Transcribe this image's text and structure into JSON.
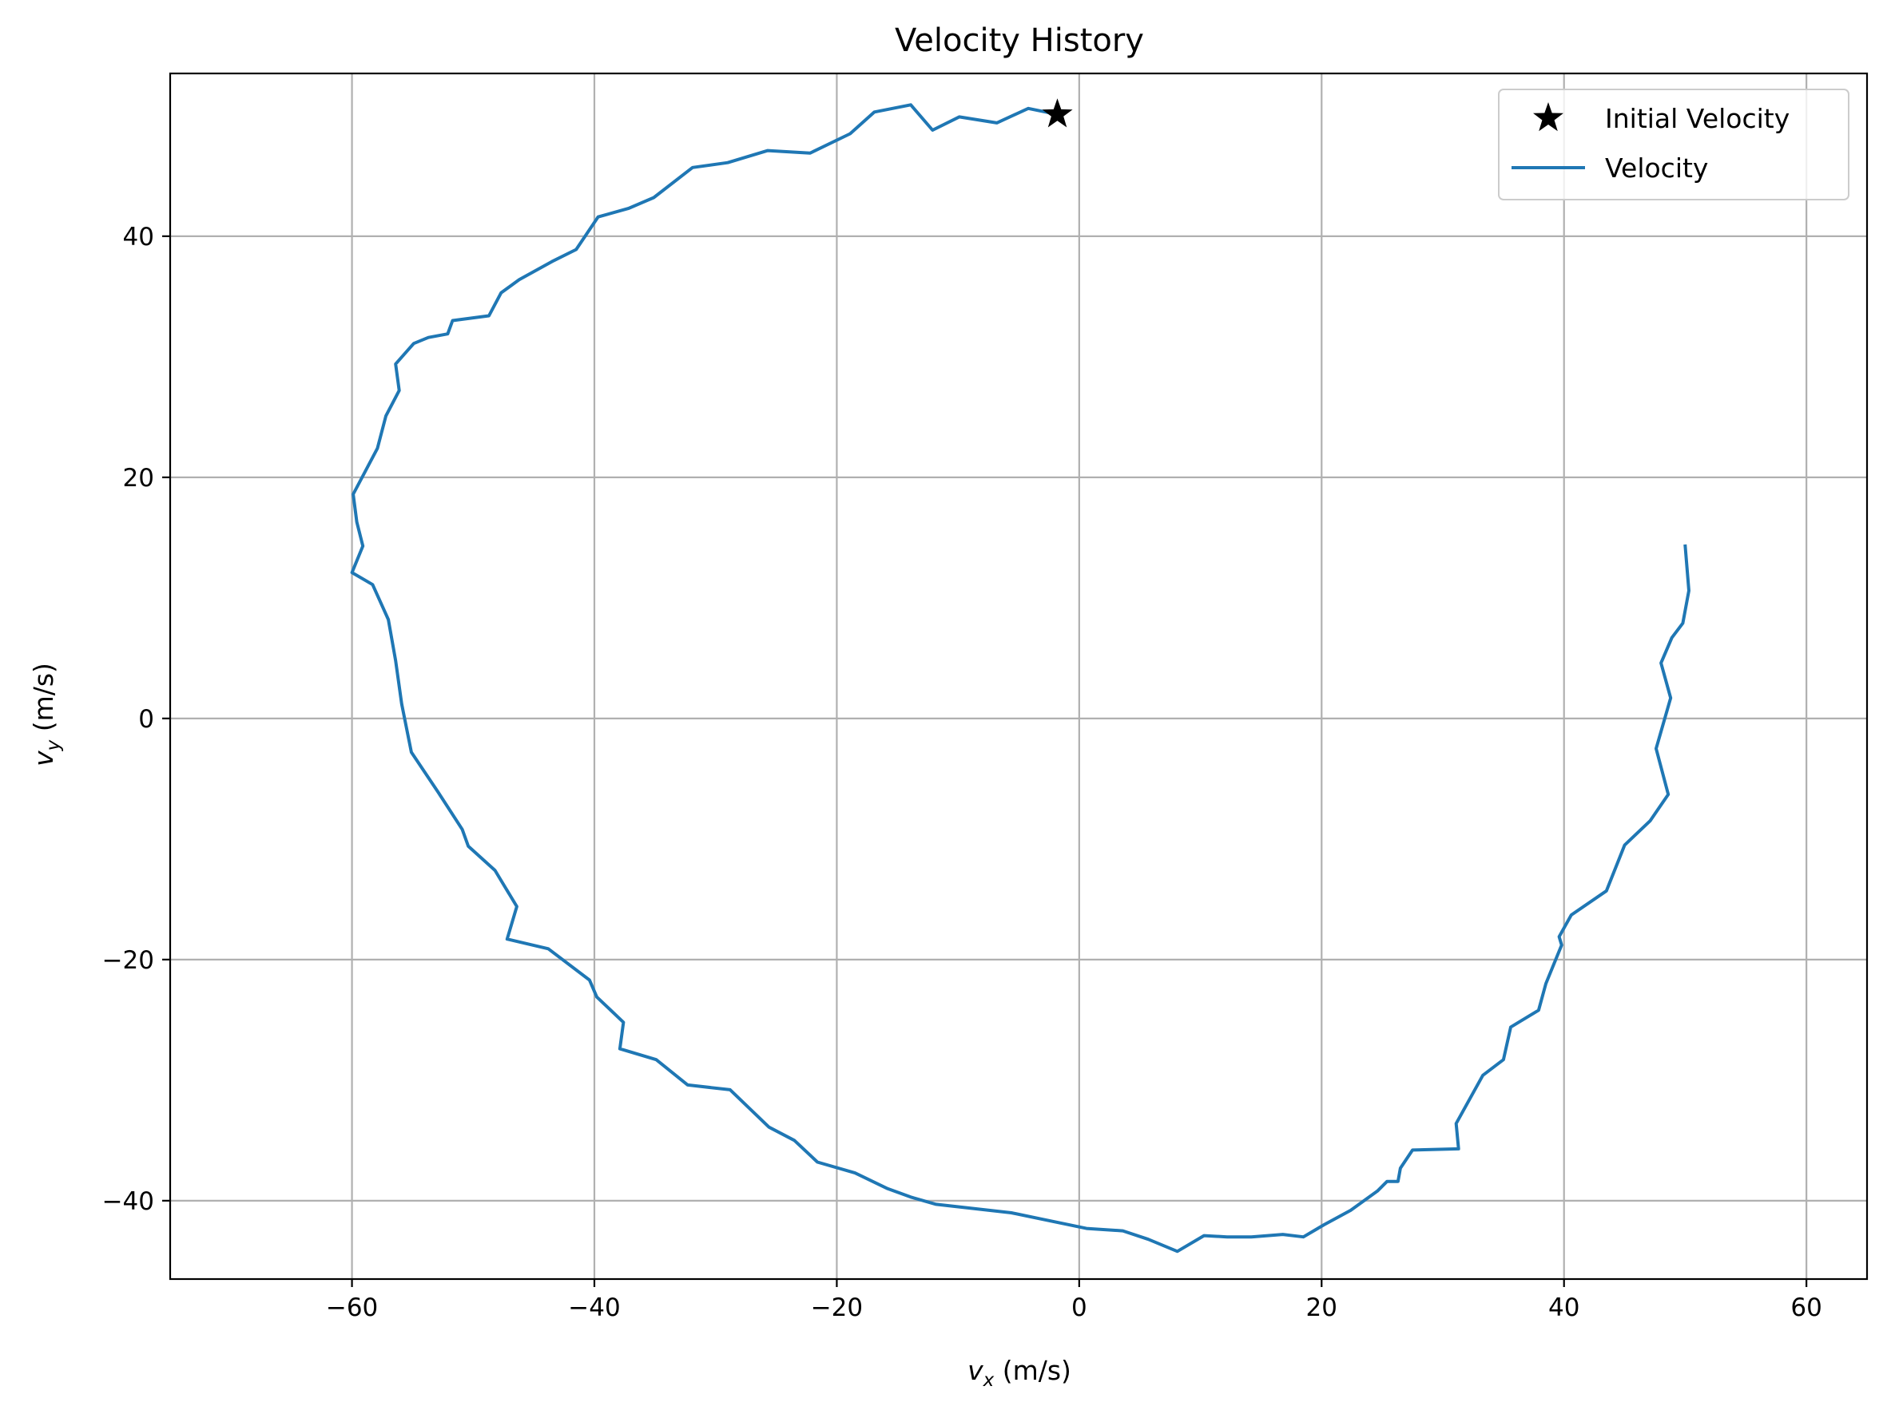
{
  "chart_data": {
    "type": "line",
    "title": "Velocity History",
    "xlabel_var": "v",
    "xlabel_sub": "x",
    "xlabel_unit": " (m/s)",
    "ylabel_var": "v",
    "ylabel_sub": "y",
    "ylabel_unit": " (m/s)",
    "xlim": [
      -75,
      65
    ],
    "ylim": [
      -46.5,
      53.5
    ],
    "xticks": [
      -60,
      -40,
      -20,
      0,
      20,
      40,
      60
    ],
    "yticks": [
      -40,
      -20,
      0,
      20,
      40
    ],
    "xtick_labels": [
      "−60",
      "−40",
      "−20",
      "0",
      "20",
      "40",
      "60"
    ],
    "ytick_labels": [
      "−40",
      "−20",
      "0",
      "20",
      "40"
    ],
    "grid": true,
    "legend_position": "top-right",
    "legend": [
      {
        "label": "Initial Velocity",
        "marker": "star",
        "color": "#000000"
      },
      {
        "label": "Velocity",
        "marker": "line",
        "color": "#1f77b4"
      }
    ],
    "initial_point": {
      "x": -1.8,
      "y": 50.1
    },
    "series": [
      {
        "name": "Velocity",
        "color": "#1f77b4",
        "points": [
          [
            -1.8,
            50.1
          ],
          [
            -4.2,
            50.6
          ],
          [
            -6.8,
            49.4
          ],
          [
            -9.9,
            49.9
          ],
          [
            -12.1,
            48.8
          ],
          [
            -13.9,
            50.9
          ],
          [
            -16.9,
            50.3
          ],
          [
            -18.9,
            48.5
          ],
          [
            -22.2,
            46.9
          ],
          [
            -25.7,
            47.1
          ],
          [
            -29.0,
            46.1
          ],
          [
            -31.9,
            45.7
          ],
          [
            -35.1,
            43.2
          ],
          [
            -37.2,
            42.3
          ],
          [
            -39.7,
            41.6
          ],
          [
            -41.5,
            38.9
          ],
          [
            -43.5,
            37.9
          ],
          [
            -46.2,
            36.4
          ],
          [
            -47.7,
            35.3
          ],
          [
            -48.7,
            33.4
          ],
          [
            -51.7,
            33.0
          ],
          [
            -52.1,
            31.9
          ],
          [
            -53.7,
            31.6
          ],
          [
            -54.9,
            31.1
          ],
          [
            -56.4,
            29.4
          ],
          [
            -56.1,
            27.2
          ],
          [
            -57.2,
            25.1
          ],
          [
            -57.9,
            22.4
          ],
          [
            -59.9,
            18.6
          ],
          [
            -59.6,
            16.3
          ],
          [
            -59.1,
            14.3
          ],
          [
            -60.0,
            12.1
          ],
          [
            -58.3,
            11.1
          ],
          [
            -57.0,
            8.2
          ],
          [
            -56.4,
            4.8
          ],
          [
            -55.9,
            1.2
          ],
          [
            -55.1,
            -2.8
          ],
          [
            -52.9,
            -6.1
          ],
          [
            -50.9,
            -9.2
          ],
          [
            -50.4,
            -10.6
          ],
          [
            -48.2,
            -12.6
          ],
          [
            -46.4,
            -15.6
          ],
          [
            -47.2,
            -18.3
          ],
          [
            -43.8,
            -19.1
          ],
          [
            -40.4,
            -21.7
          ],
          [
            -39.8,
            -23.1
          ],
          [
            -37.6,
            -25.2
          ],
          [
            -37.9,
            -27.4
          ],
          [
            -34.9,
            -28.3
          ],
          [
            -32.3,
            -30.4
          ],
          [
            -28.8,
            -30.8
          ],
          [
            -25.6,
            -33.9
          ],
          [
            -23.5,
            -35.0
          ],
          [
            -21.6,
            -36.8
          ],
          [
            -18.5,
            -37.7
          ],
          [
            -15.8,
            -39.0
          ],
          [
            -13.9,
            -39.7
          ],
          [
            -11.8,
            -40.3
          ],
          [
            -5.6,
            -41.0
          ],
          [
            0.6,
            -42.3
          ],
          [
            3.6,
            -42.5
          ],
          [
            5.7,
            -43.2
          ],
          [
            8.1,
            -44.2
          ],
          [
            10.3,
            -42.9
          ],
          [
            12.2,
            -43.0
          ],
          [
            14.2,
            -43.0
          ],
          [
            16.8,
            -42.8
          ],
          [
            18.5,
            -43.0
          ],
          [
            20.2,
            -42.0
          ],
          [
            22.4,
            -40.8
          ],
          [
            24.6,
            -39.2
          ],
          [
            25.4,
            -38.4
          ],
          [
            26.3,
            -38.4
          ],
          [
            26.5,
            -37.3
          ],
          [
            27.5,
            -35.8
          ],
          [
            31.3,
            -35.7
          ],
          [
            31.1,
            -33.6
          ],
          [
            33.3,
            -29.6
          ],
          [
            35.0,
            -28.3
          ],
          [
            35.6,
            -25.6
          ],
          [
            37.9,
            -24.2
          ],
          [
            38.5,
            -22.0
          ],
          [
            39.8,
            -18.8
          ],
          [
            39.6,
            -18.1
          ],
          [
            40.6,
            -16.3
          ],
          [
            43.5,
            -14.3
          ],
          [
            45.0,
            -10.5
          ],
          [
            47.1,
            -8.5
          ],
          [
            48.6,
            -6.3
          ],
          [
            47.6,
            -2.5
          ],
          [
            48.8,
            1.7
          ],
          [
            48.0,
            4.6
          ],
          [
            48.9,
            6.7
          ],
          [
            49.8,
            7.9
          ],
          [
            50.3,
            10.6
          ],
          [
            50.0,
            14.3
          ]
        ]
      }
    ]
  },
  "colors": {
    "line": "#1f77b4",
    "marker": "#000000",
    "grid": "#b0b0b0",
    "frame": "#000000",
    "legend_border": "#cccccc"
  }
}
